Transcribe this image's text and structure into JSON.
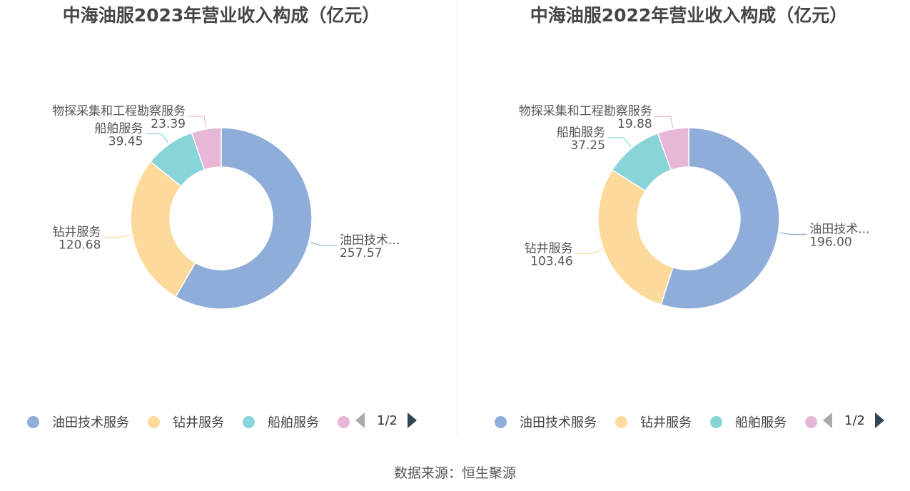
{
  "chart_data": [
    {
      "type": "pie",
      "variant": "donut",
      "title": "中海油服2023年营业收入构成（亿元）",
      "categories": [
        "油田技术服务",
        "钻井服务",
        "船舶服务",
        "物探采集和工程勘察服务"
      ],
      "label_names": [
        "油田技术...",
        "钻井服务",
        "船舶服务",
        "物探采集和工程勘察服务"
      ],
      "values": [
        257.57,
        120.68,
        39.45,
        23.39
      ],
      "value_labels": [
        "257.57",
        "120.68",
        "39.45",
        "23.39"
      ],
      "colors": [
        "#8eadd8",
        "#fdd99b",
        "#89d4d8",
        "#e8b7d8"
      ],
      "legend": {
        "visible_items": [
          "油田技术服务",
          "钻井服务",
          "船舶服务",
          ""
        ],
        "page": "1/2",
        "placement": "bottom"
      }
    },
    {
      "type": "pie",
      "variant": "donut",
      "title": "中海油服2022年营业收入构成（亿元）",
      "categories": [
        "油田技术服务",
        "钻井服务",
        "船舶服务",
        "物探采集和工程勘察服务"
      ],
      "label_names": [
        "油田技术...",
        "钻井服务",
        "船舶服务",
        "物探采集和工程勘察服务"
      ],
      "values": [
        196.0,
        103.46,
        37.25,
        19.88
      ],
      "value_labels": [
        "196.00",
        "103.46",
        "37.25",
        "19.88"
      ],
      "colors": [
        "#8eadd8",
        "#fdd99b",
        "#89d4d8",
        "#e8b7d8"
      ],
      "legend": {
        "visible_items": [
          "油田技术服务",
          "钻井服务",
          "船舶服务",
          ""
        ],
        "page": "1/2",
        "placement": "bottom"
      }
    }
  ],
  "source": "数据来源：恒生聚源",
  "icons": {
    "legend_marker": "circle-icon",
    "pager_prev": "triangle-left-icon",
    "pager_next": "triangle-right-icon"
  }
}
